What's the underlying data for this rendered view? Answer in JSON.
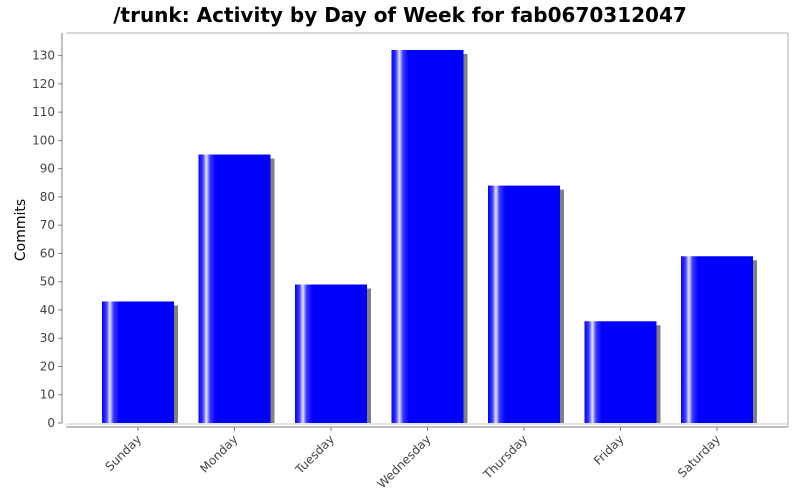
{
  "chart_data": {
    "type": "bar",
    "title": "/trunk: Activity by Day of Week for fab0670312047",
    "xlabel": "",
    "ylabel": "Commits",
    "categories": [
      "Sunday",
      "Monday",
      "Tuesday",
      "Wednesday",
      "Thursday",
      "Friday",
      "Saturday"
    ],
    "values": [
      43,
      95,
      49,
      132,
      84,
      36,
      59
    ],
    "ylim": [
      0,
      138
    ],
    "yticks": [
      0,
      10,
      20,
      30,
      40,
      50,
      60,
      70,
      80,
      90,
      100,
      110,
      120,
      130
    ],
    "grid": false,
    "legend": "none",
    "colors": {
      "bar": "#0000ff",
      "bar_highlight": "#ffffff",
      "shadow": "#808080",
      "axis": "#808080",
      "text": "#000000",
      "tick_text": "#444444"
    }
  }
}
